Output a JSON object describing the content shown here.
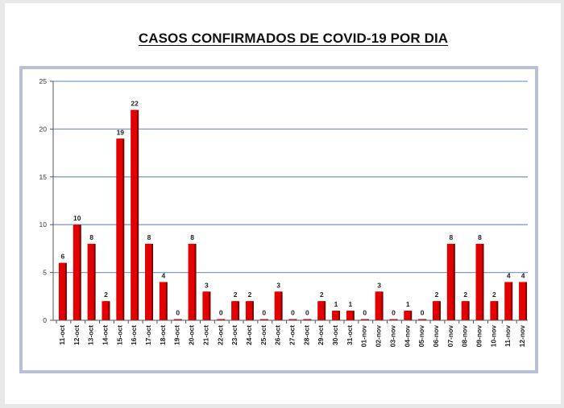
{
  "title": "CASOS CONFIRMADOS DE COVID-19 POR DIA",
  "colors": {
    "bar": "#e30000",
    "bar_shadow": "#7a0000",
    "gridline": "#7e9bd2",
    "frame": "#b9c0d6"
  },
  "chart_data": {
    "type": "bar",
    "title": "CASOS CONFIRMADOS DE COVID-19 POR DIA",
    "xlabel": "",
    "ylabel": "",
    "ylim": [
      0,
      25
    ],
    "yticks": [
      "0",
      "5",
      "10",
      "15",
      "20",
      "25"
    ],
    "grid": true,
    "categories": [
      "11-oct",
      "12-oct",
      "13-oct",
      "14-oct",
      "15-oct",
      "16-oct",
      "17-oct",
      "18-oct",
      "19-oct",
      "20-oct",
      "21-oct",
      "22-oct",
      "23-oct",
      "24-oct",
      "25-oct",
      "26-oct",
      "27-oct",
      "28-oct",
      "29-oct",
      "30-oct",
      "31-oct",
      "01-nov",
      "02-nov",
      "03-nov",
      "04-nov",
      "05-nov",
      "06-nov",
      "07-nov",
      "08-nov",
      "09-nov",
      "10-nov",
      "11-nov",
      "12-nov"
    ],
    "values": [
      6,
      10,
      8,
      2,
      19,
      22,
      8,
      4,
      0,
      8,
      3,
      0,
      2,
      2,
      0,
      3,
      0,
      0,
      2,
      1,
      1,
      0,
      3,
      0,
      1,
      0,
      2,
      8,
      2,
      8,
      2,
      4,
      4
    ],
    "data_labels": [
      "6",
      "10",
      "8",
      "2",
      "19",
      "22",
      "8",
      "4",
      "0",
      "8",
      "3",
      "0",
      "2",
      "2",
      "0",
      "3",
      "0",
      "0",
      "2",
      "1",
      "1",
      "0",
      "3",
      "0",
      "1",
      "0",
      "2",
      "8",
      "2",
      "8",
      "2",
      "4",
      "4"
    ]
  }
}
